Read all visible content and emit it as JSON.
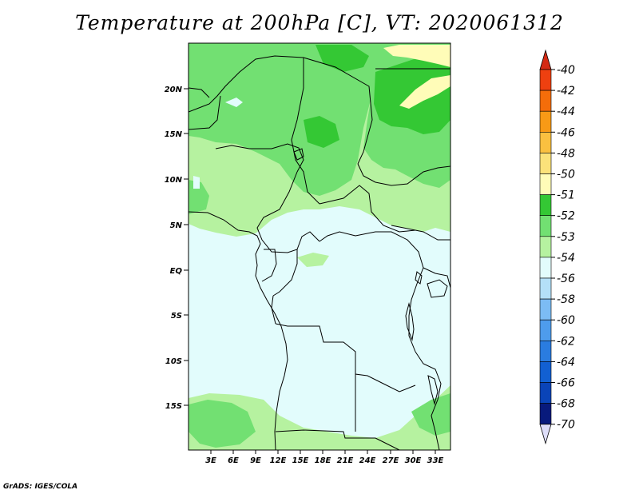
{
  "title": "Temperature at 200hPa [C], VT: 2020061312",
  "credit": "GrADS: IGES/COLA",
  "lat_labels": [
    "20N",
    "15N",
    "10N",
    "5N",
    "EQ",
    "5S",
    "10S",
    "15S"
  ],
  "lon_labels": [
    "3E",
    "6E",
    "9E",
    "12E",
    "15E",
    "18E",
    "21E",
    "24E",
    "27E",
    "30E",
    "33E"
  ],
  "colorbar": {
    "labels": [
      "-40",
      "-42",
      "-44",
      "-46",
      "-48",
      "-50",
      "-51",
      "-52",
      "-53",
      "-54",
      "-56",
      "-58",
      "-60",
      "-62",
      "-64",
      "-66",
      "-68",
      "-70"
    ],
    "colors": [
      "#d42a14",
      "#ee4010",
      "#f46d0a",
      "#f89a16",
      "#fac040",
      "#fbe27a",
      "#fffcb8",
      "#34c834",
      "#72e072",
      "#b6f2a0",
      "#e2fcfc",
      "#b4e0f8",
      "#7cbcf4",
      "#4e9cec",
      "#2a7ce0",
      "#1260d2",
      "#0a44b8",
      "#081a7c",
      "#ddddf8"
    ]
  }
}
